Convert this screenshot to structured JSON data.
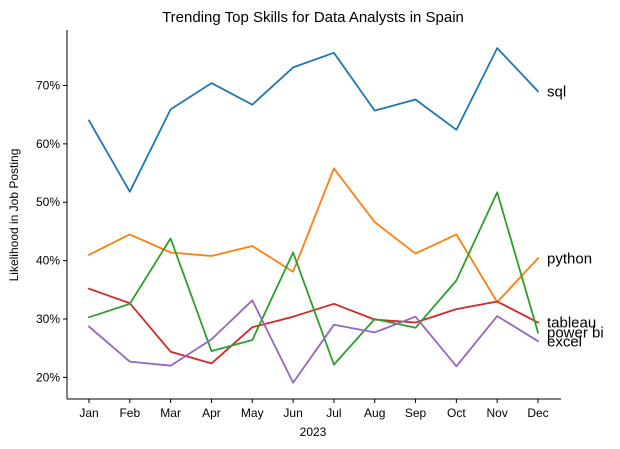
{
  "chart_data": {
    "type": "line",
    "title": "Trending Top Skills for Data Analysts in Spain",
    "xlabel": "2023",
    "ylabel": "Likelihood in Job Posting",
    "categories": [
      "Jan",
      "Feb",
      "Mar",
      "Apr",
      "May",
      "Jun",
      "Jul",
      "Aug",
      "Sep",
      "Oct",
      "Nov",
      "Dec"
    ],
    "y_unit": "%",
    "ylim": [
      16.3,
      79.5
    ],
    "yticks": [
      20,
      30,
      40,
      50,
      60,
      70
    ],
    "ytick_labels": [
      "20%",
      "30%",
      "40%",
      "50%",
      "60%",
      "70%"
    ],
    "grid": false,
    "legend": "end-of-line labels",
    "series": [
      {
        "name": "sql",
        "color": "#1f77b4",
        "values": [
          64.0,
          51.8,
          65.9,
          70.4,
          66.7,
          73.1,
          75.6,
          65.7,
          67.6,
          62.4,
          76.4,
          69.0
        ]
      },
      {
        "name": "python",
        "color": "#ff7f0e",
        "values": [
          41.0,
          44.5,
          41.4,
          40.8,
          42.5,
          38.1,
          55.8,
          46.6,
          41.2,
          44.5,
          32.9,
          40.4
        ]
      },
      {
        "name": "tableau",
        "color": "#d62728",
        "values": [
          35.2,
          32.7,
          24.4,
          22.4,
          28.6,
          30.4,
          32.6,
          29.9,
          29.4,
          31.7,
          33.0,
          29.4
        ]
      },
      {
        "name": "power bi",
        "color": "#2ca02c",
        "values": [
          30.3,
          32.6,
          43.8,
          24.5,
          26.4,
          41.4,
          22.2,
          30.0,
          28.5,
          36.6,
          51.7,
          27.7
        ]
      },
      {
        "name": "excel",
        "color": "#9467bd",
        "values": [
          28.7,
          22.7,
          22.0,
          26.5,
          33.2,
          19.1,
          29.0,
          27.7,
          30.4,
          21.9,
          30.5,
          26.2
        ]
      }
    ]
  }
}
